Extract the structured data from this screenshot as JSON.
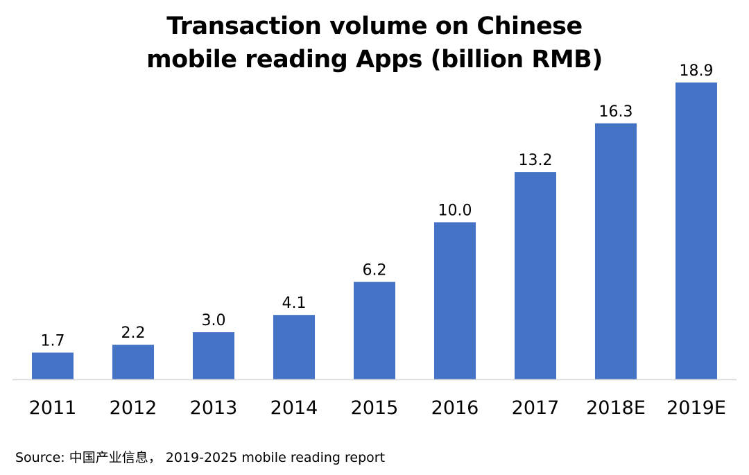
{
  "chart_data": {
    "type": "bar",
    "title": "Transaction volume on Chinese mobile reading Apps (billion RMB)",
    "title_lines": [
      "Transaction volume on Chinese",
      "mobile reading Apps (billion RMB)"
    ],
    "categories": [
      "2011",
      "2012",
      "2013",
      "2014",
      "2015",
      "2016",
      "2017",
      "2018E",
      "2019E"
    ],
    "values": [
      1.7,
      2.2,
      3.0,
      4.1,
      6.2,
      10.0,
      13.2,
      16.3,
      18.9
    ],
    "data_labels": [
      "1.7",
      "2.2",
      "3.0",
      "4.1",
      "6.2",
      "10.0",
      "13.2",
      "16.3",
      "18.9"
    ],
    "xlabel": "",
    "ylabel": "",
    "ylim": [
      0,
      18.9
    ],
    "grid": false,
    "legend": "none",
    "bar_color": "#4472C4"
  },
  "source": "Source: 中国产业信息， 2019-2025 mobile reading report"
}
